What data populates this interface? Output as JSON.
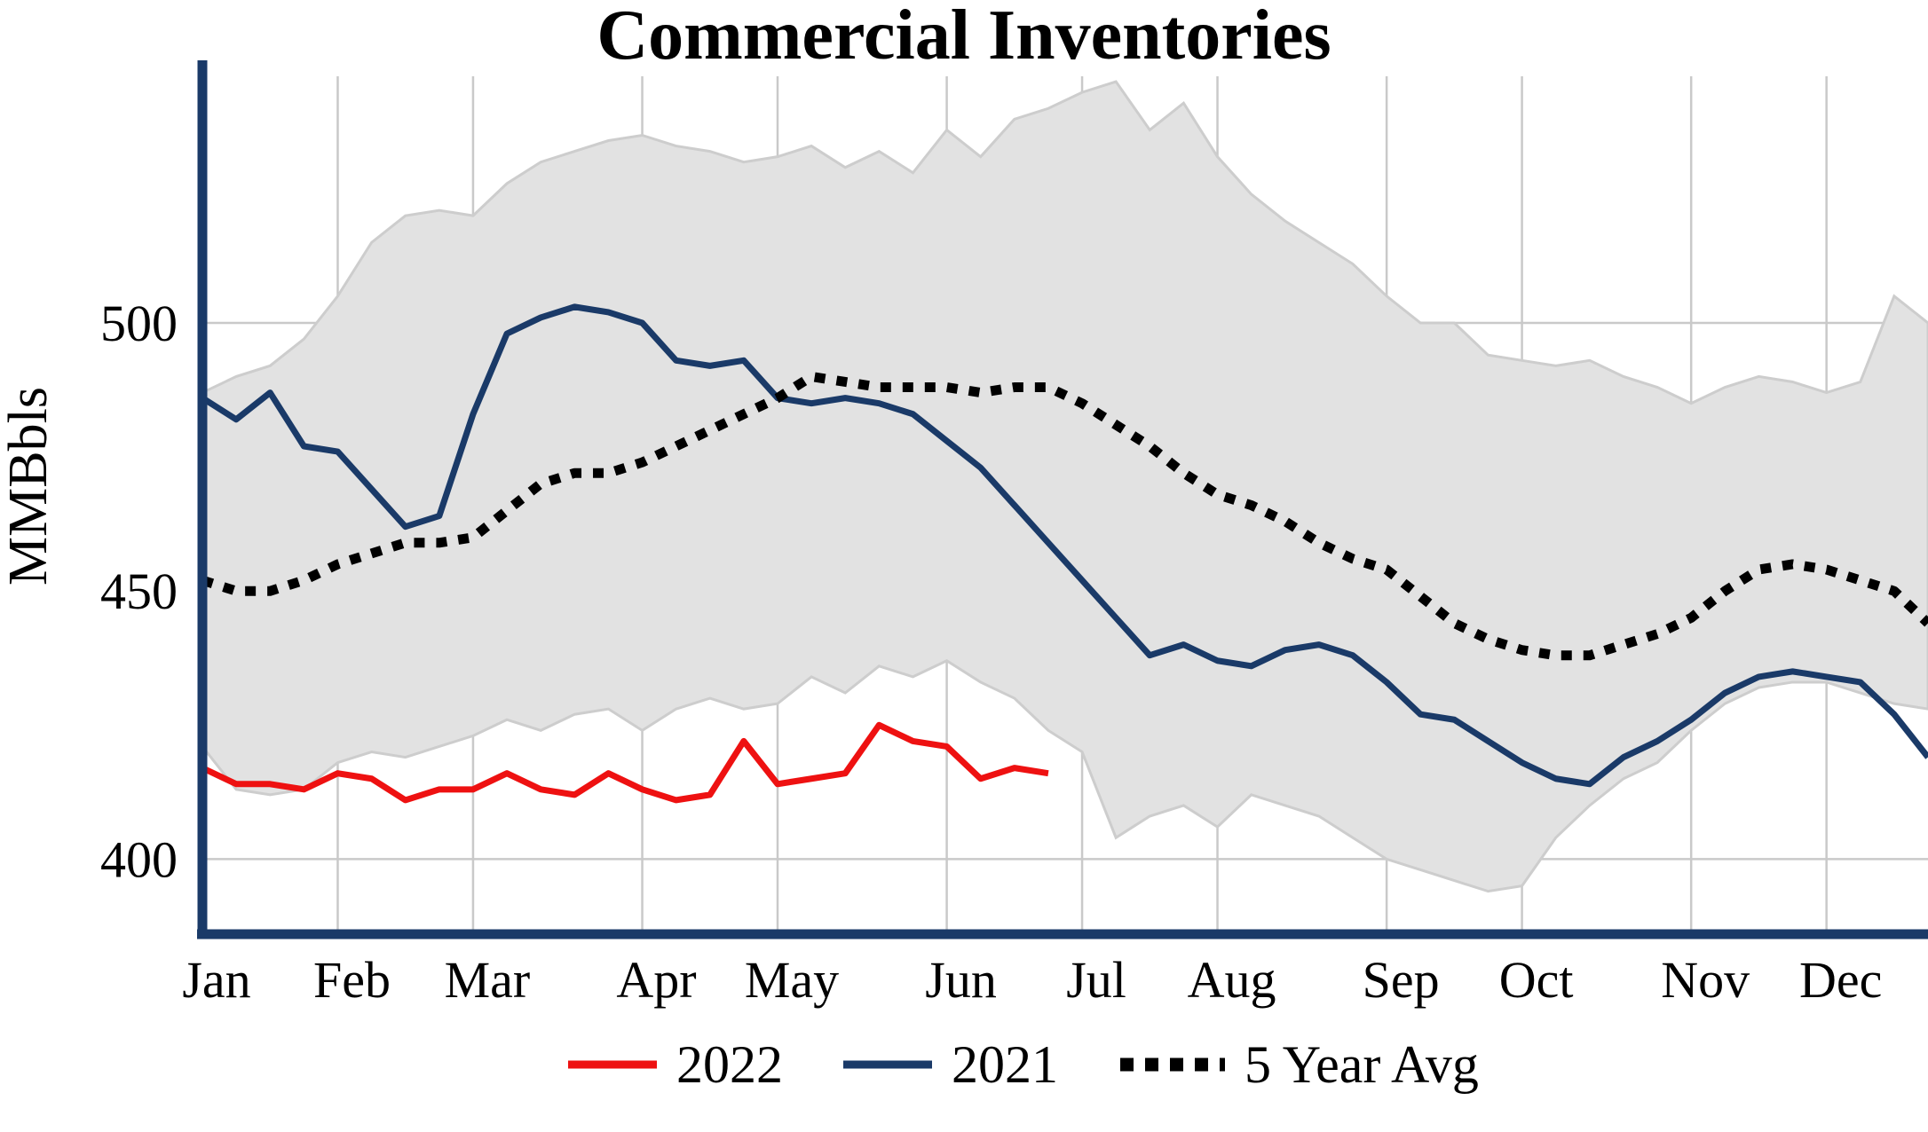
{
  "chart_data": {
    "type": "line",
    "title": "Commercial Inventories",
    "ylabel": "MMBbls",
    "axis_color": "#1a3a68",
    "grid_color": "#c9c9c9",
    "ylim": [
      386,
      546
    ],
    "yticks": [
      400,
      450,
      500
    ],
    "x_axis": {
      "months": [
        "Jan",
        "Feb",
        "Mar",
        "Apr",
        "May",
        "Jun",
        "Jul",
        "Aug",
        "Sep",
        "Oct",
        "Nov",
        "Dec"
      ],
      "weeks_per_month": [
        4,
        4,
        5,
        4,
        5,
        4,
        4,
        5,
        4,
        5,
        4,
        4
      ]
    },
    "series": [
      {
        "id": "5-year-range",
        "name": "5 Year Range",
        "type": "band",
        "color": "#e2e2e2",
        "edge_color": "#cdcdcd",
        "upper": [
          487,
          490,
          492,
          497,
          505,
          515,
          520,
          521,
          520,
          526,
          530,
          532,
          534,
          535,
          533,
          532,
          530,
          531,
          533,
          529,
          532,
          528,
          536,
          531,
          538,
          540,
          543,
          545,
          536,
          541,
          531,
          524,
          519,
          515,
          511,
          505,
          500,
          500,
          494,
          493,
          492,
          493,
          490,
          488,
          485,
          488,
          490,
          489,
          487,
          489,
          505,
          500
        ],
        "lower": [
          421,
          413,
          412,
          413,
          418,
          420,
          419,
          421,
          423,
          426,
          424,
          427,
          428,
          424,
          428,
          430,
          428,
          429,
          434,
          431,
          436,
          434,
          437,
          433,
          430,
          424,
          420,
          404,
          408,
          410,
          406,
          412,
          410,
          408,
          404,
          400,
          398,
          396,
          394,
          395,
          404,
          410,
          415,
          418,
          424,
          429,
          432,
          433,
          433,
          431,
          429,
          428
        ]
      },
      {
        "id": "2021",
        "name": "2021",
        "type": "line",
        "color": "#1a3a68",
        "width": 7,
        "values": [
          486,
          482,
          487,
          477,
          476,
          469,
          462,
          464,
          483,
          498,
          501,
          503,
          502,
          500,
          493,
          492,
          493,
          486,
          485,
          486,
          485,
          483,
          478,
          473,
          466,
          459,
          452,
          445,
          438,
          440,
          437,
          436,
          439,
          440,
          438,
          433,
          427,
          426,
          422,
          418,
          415,
          414,
          419,
          422,
          426,
          431,
          434,
          435,
          434,
          433,
          427,
          419
        ]
      },
      {
        "id": "5-year-avg",
        "name": "5 Year Avg",
        "type": "line",
        "color": "#000000",
        "width": 11,
        "dash": "12 13",
        "values": [
          452,
          450,
          450,
          452,
          455,
          457,
          459,
          459,
          460,
          465,
          470,
          472,
          472,
          474,
          477,
          480,
          483,
          486,
          490,
          489,
          488,
          488,
          488,
          487,
          488,
          488,
          485,
          481,
          477,
          472,
          468,
          466,
          463,
          459,
          456,
          454,
          449,
          444,
          441,
          439,
          438,
          438,
          440,
          442,
          445,
          450,
          454,
          455,
          454,
          452,
          450,
          444
        ]
      },
      {
        "id": "2022",
        "name": "2022",
        "type": "line",
        "color": "#ee1111",
        "width": 7,
        "values": [
          417,
          414,
          414,
          413,
          416,
          415,
          411,
          413,
          413,
          416,
          413,
          412,
          416,
          413,
          411,
          412,
          422,
          414,
          415,
          416,
          425,
          422,
          421,
          415,
          417,
          416
        ]
      }
    ],
    "legend": [
      {
        "label": "2022",
        "color": "#ee1111",
        "style": "solid"
      },
      {
        "label": "2021",
        "color": "#1a3a68",
        "style": "solid"
      },
      {
        "label": "5 Year Avg",
        "color": "#000000",
        "style": "dotted"
      }
    ]
  }
}
